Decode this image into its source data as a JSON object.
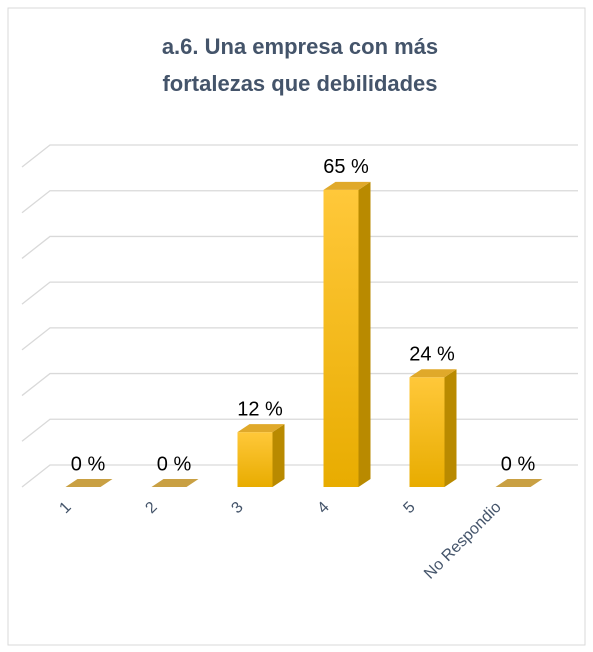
{
  "chart_data": {
    "type": "bar3d",
    "title": [
      "a.6.   Una empresa con más",
      "fortalezas que debilidades"
    ],
    "categories": [
      "1",
      "2",
      "3",
      "4",
      "5",
      "No Respondio"
    ],
    "values": [
      0,
      0,
      12,
      65,
      24,
      0
    ],
    "value_labels": [
      "0 %",
      "0 %",
      "12 %",
      "65 %",
      "24 %",
      "0 %"
    ],
    "color": "#ffc000",
    "ylim": [
      0,
      70
    ],
    "yticks": [
      0,
      10,
      20,
      30,
      40,
      50,
      60,
      70
    ],
    "grid": true
  }
}
